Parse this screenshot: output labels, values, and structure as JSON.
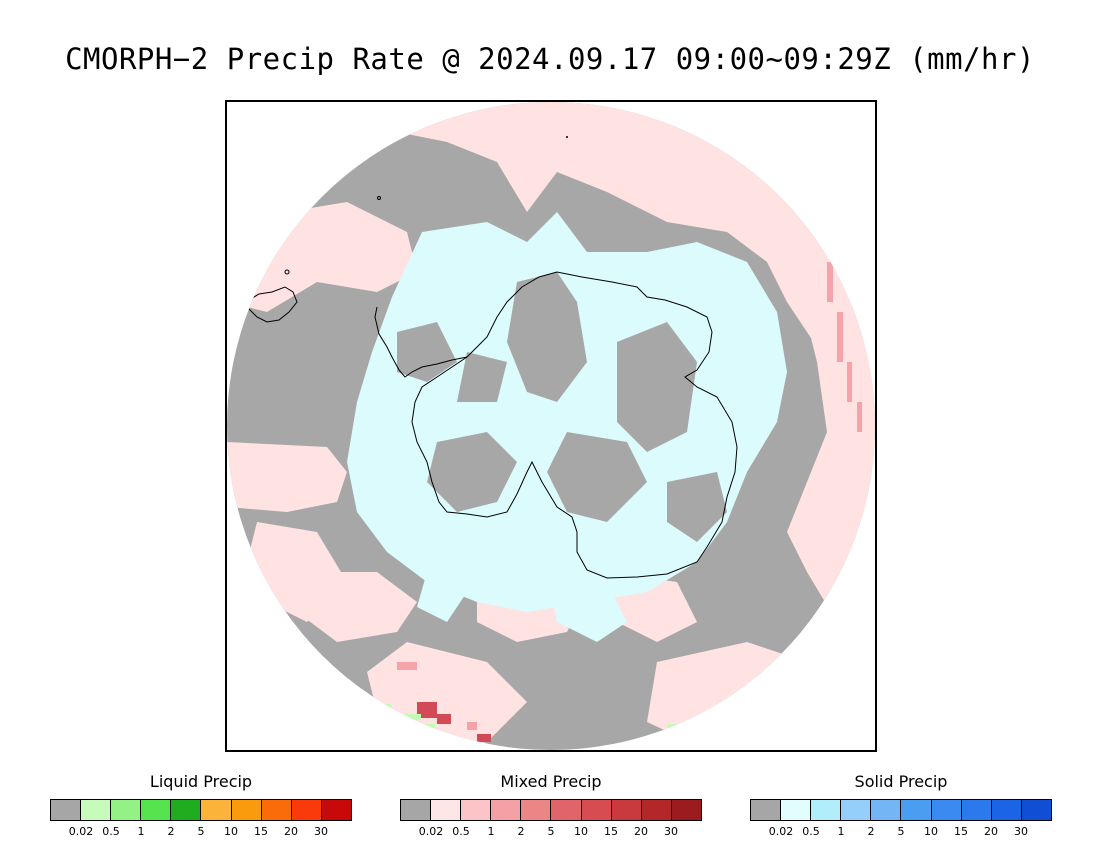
{
  "title": "CMORPH−2 Precip Rate @ 2024.09.17 09:00~09:29Z (mm/hr)",
  "map": {
    "projection": "south-polar-stereographic",
    "colors": {
      "no_precip_gray": "#a7a7a7",
      "mixed_light": "#ffe2e2",
      "mixed_mid": "#f5a3a8",
      "mixed_dark": "#d24a55",
      "solid_light": "#dcfbfc",
      "liquid_light": "#c2fbb4",
      "coastline": "#000000"
    }
  },
  "legends": [
    {
      "title": "Liquid Precip",
      "colors": [
        "#a6a6a6",
        "#c6fbbb",
        "#93f186",
        "#55e34e",
        "#1fad1f",
        "#fbb33a",
        "#f99b0c",
        "#fa6b0a",
        "#fa3a0a",
        "#c80909"
      ],
      "ticks": [
        "0.02",
        "0.5",
        "1",
        "2",
        "5",
        "10",
        "15",
        "20",
        "30"
      ]
    },
    {
      "title": "Mixed Precip",
      "colors": [
        "#a6a6a6",
        "#ffe6e6",
        "#fcc4c6",
        "#f4a0a4",
        "#ec8585",
        "#e06469",
        "#d64c51",
        "#c83a3e",
        "#b32728",
        "#9b1b1e"
      ],
      "ticks": [
        "0.02",
        "0.5",
        "1",
        "2",
        "5",
        "10",
        "15",
        "20",
        "30"
      ]
    },
    {
      "title": "Solid Precip",
      "colors": [
        "#a6a6a6",
        "#e2fdfe",
        "#b0eefb",
        "#93cffa",
        "#74b5f6",
        "#4a9ef1",
        "#3a8af2",
        "#2b79ed",
        "#1c64e6",
        "#104fd3"
      ],
      "ticks": [
        "0.02",
        "0.5",
        "1",
        "2",
        "5",
        "10",
        "15",
        "20",
        "30"
      ]
    }
  ]
}
